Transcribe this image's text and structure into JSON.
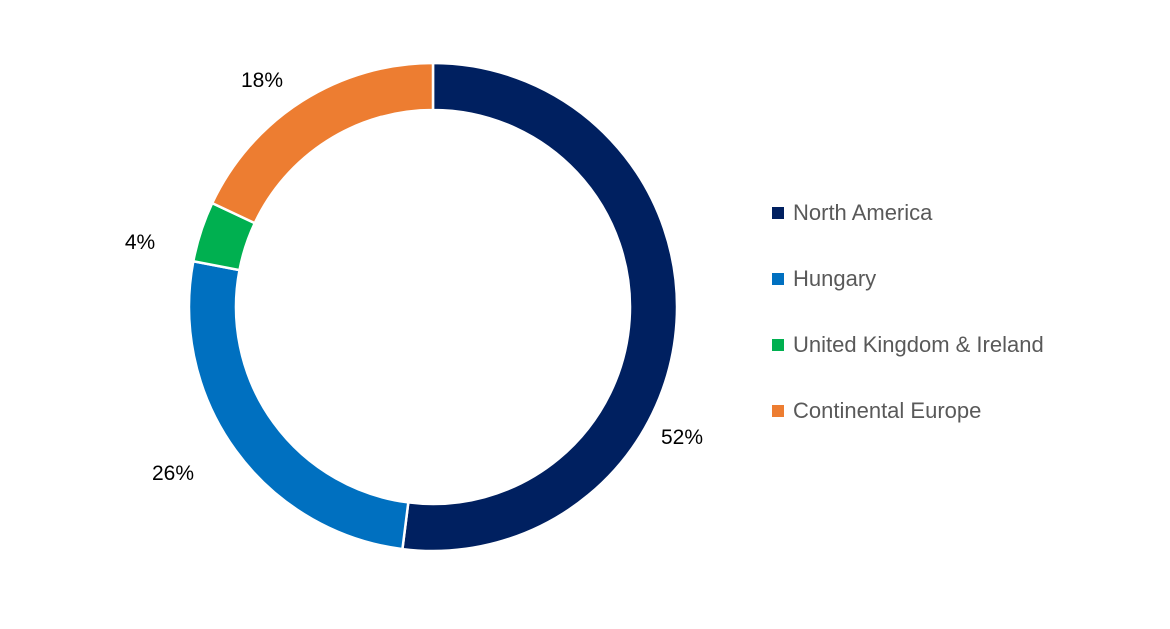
{
  "chart_data": {
    "type": "pie",
    "variant": "donut",
    "title": "",
    "categories": [
      "North America",
      "Hungary",
      "United Kingdom & Ireland",
      "Continental Europe"
    ],
    "values": [
      52,
      26,
      4,
      18
    ],
    "labels": [
      "52%",
      "26%",
      "4%",
      "18%"
    ],
    "colors": [
      "#002060",
      "#0070C0",
      "#00B050",
      "#ED7D31"
    ],
    "legend_position": "right"
  }
}
